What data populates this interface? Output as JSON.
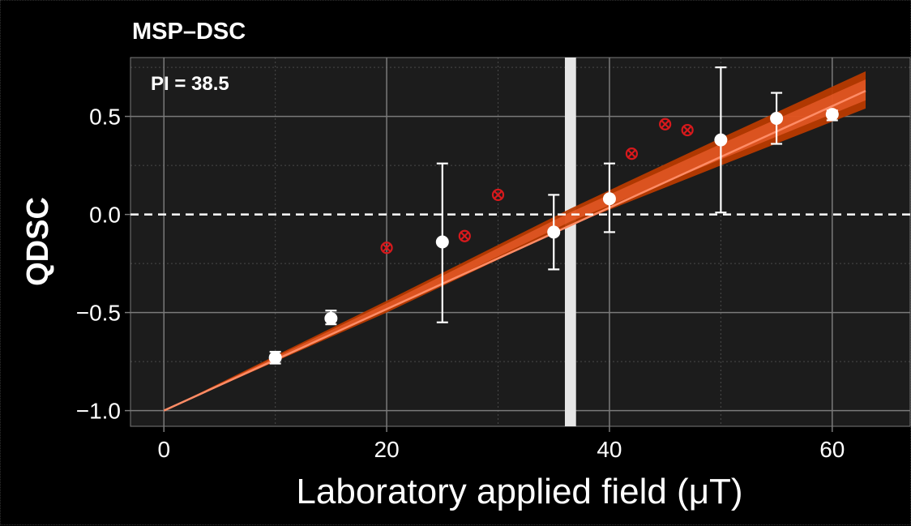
{
  "chart_data": {
    "type": "scatter",
    "title": "MSP–DSC",
    "xlabel": "Laboratory applied field (μT)",
    "ylabel": "QDSC",
    "annotation": "PI = 38.5",
    "xlim": [
      -3,
      67
    ],
    "ylim": [
      -1.08,
      0.8
    ],
    "x_ticks": [
      0,
      20,
      40,
      60
    ],
    "x_tick_labels": [
      "0",
      "20",
      "40",
      "60"
    ],
    "y_ticks": [
      -1.0,
      -0.5,
      0.0,
      0.5
    ],
    "y_tick_labels": [
      "−1.0",
      "−0.5",
      "0.0",
      "0.5"
    ],
    "grid": true,
    "zero_line": 0.0,
    "vertical_band": [
      36.0,
      37.0
    ],
    "fit_line": {
      "x": [
        0,
        63
      ],
      "y": [
        -1.0,
        0.63
      ]
    },
    "confidence_band": {
      "x": [
        0,
        10,
        20,
        36.5,
        50,
        63
      ],
      "lower": [
        -1.0,
        -0.75,
        -0.5,
        -0.055,
        0.25,
        0.54
      ],
      "upper": [
        -1.0,
        -0.72,
        -0.44,
        0.03,
        0.39,
        0.73
      ]
    },
    "series": [
      {
        "marker": "circle",
        "points": [
          {
            "x": 10,
            "y": -0.73,
            "yerr_low": -0.76,
            "yerr_high": -0.7
          },
          {
            "x": 15,
            "y": -0.53,
            "yerr_low": -0.56,
            "yerr_high": -0.49
          },
          {
            "x": 25,
            "y": -0.14,
            "yerr_low": -0.55,
            "yerr_high": 0.26
          },
          {
            "x": 35,
            "y": -0.09,
            "yerr_low": -0.28,
            "yerr_high": 0.1
          },
          {
            "x": 40,
            "y": 0.08,
            "yerr_low": -0.09,
            "yerr_high": 0.26
          },
          {
            "x": 50,
            "y": 0.38,
            "yerr_low": 0.01,
            "yerr_high": 0.75
          },
          {
            "x": 55,
            "y": 0.49,
            "yerr_low": 0.36,
            "yerr_high": 0.62
          },
          {
            "x": 60,
            "y": 0.51,
            "yerr_low": 0.48,
            "yerr_high": 0.53
          }
        ]
      },
      {
        "marker": "circle-x",
        "points": [
          {
            "x": 20,
            "y": -0.17
          },
          {
            "x": 27,
            "y": -0.11
          },
          {
            "x": 30,
            "y": 0.1
          },
          {
            "x": 42,
            "y": 0.31
          },
          {
            "x": 45,
            "y": 0.46
          },
          {
            "x": 47,
            "y": 0.43
          }
        ]
      }
    ]
  },
  "colors": {
    "background": "#000000",
    "panel": "#1c1c1c",
    "grid_major": "#7a7a7a",
    "grid_minor": "#4a4a4a",
    "text": "#ffffff",
    "fit_line": "#ff8c66",
    "band_fill": "#b83a00",
    "band_highlight": "#ff6a3a",
    "vertical_band": "#e6e6e6",
    "points": "#ffffff",
    "excluded": "#d7191c"
  }
}
